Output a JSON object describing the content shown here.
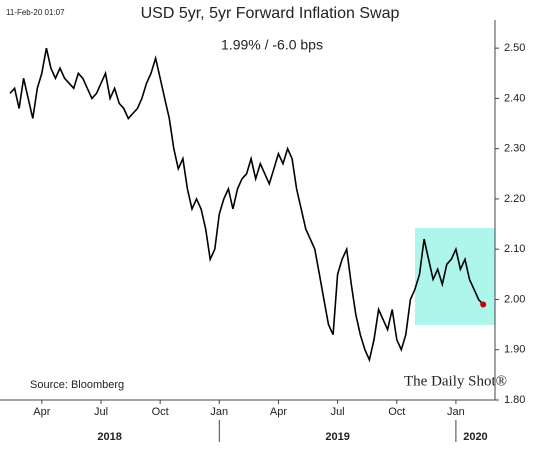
{
  "chart_data": {
    "type": "line",
    "title": "USD 5yr, 5yr Forward Inflation Swap",
    "subtitle": "1.99%  /  -6.0 bps",
    "timestamp": "11-Feb-20 01:07",
    "source": "Source: Bloomberg",
    "brand": "The Daily Shot®",
    "categories": [
      null,
      null,
      null,
      null,
      null,
      null,
      null,
      "Apr",
      null,
      null,
      null,
      null,
      null,
      null,
      null,
      null,
      null,
      null,
      null,
      null,
      "Jul",
      null,
      null,
      null,
      null,
      null,
      null,
      null,
      null,
      null,
      null,
      null,
      null,
      "Oct",
      null,
      null,
      null,
      null,
      null,
      null,
      null,
      null,
      null,
      null,
      null,
      null,
      "Jan",
      null,
      null,
      null,
      null,
      null,
      null,
      null,
      null,
      null,
      null,
      null,
      null,
      "Apr",
      null,
      null,
      null,
      null,
      null,
      null,
      null,
      null,
      null,
      null,
      null,
      null,
      "Jul",
      null,
      null,
      null,
      null,
      null,
      null,
      null,
      null,
      null,
      null,
      null,
      null,
      "Oct",
      null,
      null,
      null,
      null,
      null,
      null,
      null,
      null,
      null,
      null,
      null,
      null,
      "Jan",
      null,
      null,
      null,
      null,
      null,
      null
    ],
    "values": [
      2.41,
      2.42,
      2.38,
      2.44,
      2.4,
      2.36,
      2.42,
      2.45,
      2.5,
      2.46,
      2.44,
      2.46,
      2.44,
      2.43,
      2.42,
      2.45,
      2.44,
      2.42,
      2.4,
      2.41,
      2.43,
      2.45,
      2.4,
      2.42,
      2.39,
      2.38,
      2.36,
      2.37,
      2.38,
      2.4,
      2.43,
      2.45,
      2.48,
      2.44,
      2.4,
      2.36,
      2.3,
      2.26,
      2.28,
      2.22,
      2.18,
      2.2,
      2.18,
      2.14,
      2.08,
      2.1,
      2.17,
      2.2,
      2.22,
      2.18,
      2.22,
      2.24,
      2.25,
      2.28,
      2.24,
      2.27,
      2.25,
      2.23,
      2.26,
      2.29,
      2.27,
      2.3,
      2.28,
      2.22,
      2.18,
      2.14,
      2.12,
      2.1,
      2.05,
      2.0,
      1.95,
      1.93,
      2.05,
      2.08,
      2.1,
      2.03,
      1.97,
      1.93,
      1.9,
      1.88,
      1.92,
      1.98,
      1.96,
      1.94,
      1.98,
      1.92,
      1.9,
      1.93,
      2.0,
      2.02,
      2.05,
      2.12,
      2.08,
      2.04,
      2.06,
      2.03,
      2.07,
      2.08,
      2.1,
      2.06,
      2.08,
      2.04,
      2.02,
      2.0,
      1.99
    ],
    "years": [
      "2018",
      "2019",
      "2020"
    ],
    "color": "#000000",
    "last_point_color": "#cc0000",
    "ylim": [
      1.8,
      2.55
    ],
    "yticks": [
      {
        "value": 1.8,
        "label": "1.80"
      },
      {
        "value": 1.9,
        "label": "1.90"
      },
      {
        "value": 2.0,
        "label": "2.00"
      },
      {
        "value": 2.1,
        "label": "2.10"
      },
      {
        "value": 2.2,
        "label": "2.20"
      },
      {
        "value": 2.3,
        "label": "2.30"
      },
      {
        "value": 2.4,
        "label": "2.40"
      },
      {
        "value": 2.5,
        "label": "2.50"
      }
    ],
    "grid": false
  }
}
